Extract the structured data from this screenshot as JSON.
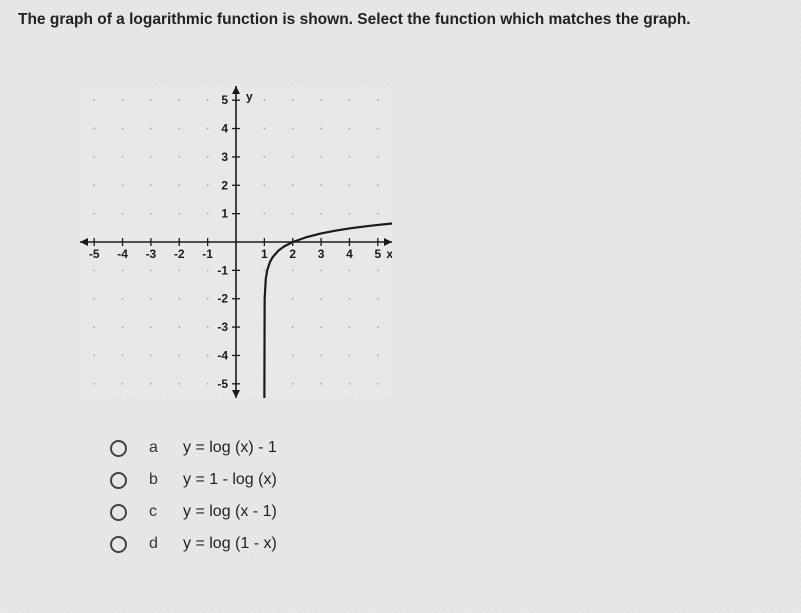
{
  "question": "The graph of a logarithmic function is shown. Select the function which matches the graph.",
  "chart": {
    "type": "line",
    "xlim": [
      -5.5,
      5.5
    ],
    "ylim": [
      -5.5,
      5.5
    ],
    "xtick_step": 1,
    "ytick_step": 1,
    "x_axis_label": "x",
    "y_axis_label": "y",
    "axis_color": "#1a1a1a",
    "grid_dot_color": "#777777",
    "background_color": "#e8e8e8",
    "curve_color": "#1a1a1a",
    "curve_width": 2.2,
    "tick_labels_x_neg": [
      "-5",
      "-4",
      "-3",
      "-2",
      "-1"
    ],
    "tick_labels_x_pos": [
      "1",
      "2",
      "3",
      "4",
      "5"
    ],
    "tick_labels_y_neg": [
      "-1",
      "-2",
      "-3",
      "-4",
      "-5"
    ],
    "tick_labels_y_pos": [
      "1",
      "2",
      "3",
      "4",
      "5"
    ],
    "label_fontsize": 12,
    "asymptote_x": 1,
    "curve_points": [
      [
        1.0001,
        -5.5
      ],
      [
        1.01,
        -2.0
      ],
      [
        1.05,
        -1.301
      ],
      [
        1.1,
        -1.0
      ],
      [
        1.2,
        -0.699
      ],
      [
        1.3,
        -0.523
      ],
      [
        1.5,
        -0.301
      ],
      [
        1.7,
        -0.155
      ],
      [
        2.0,
        0.0
      ],
      [
        2.5,
        0.176
      ],
      [
        3.0,
        0.301
      ],
      [
        3.5,
        0.398
      ],
      [
        4.0,
        0.477
      ],
      [
        4.5,
        0.544
      ],
      [
        5.0,
        0.602
      ],
      [
        5.5,
        0.653
      ]
    ]
  },
  "options": [
    {
      "letter": "a",
      "text": "y = log (x) - 1"
    },
    {
      "letter": "b",
      "text": "y = 1 - log (x)"
    },
    {
      "letter": "c",
      "text": "y = log (x - 1)"
    },
    {
      "letter": "d",
      "text": "y = log (1 - x)"
    }
  ]
}
